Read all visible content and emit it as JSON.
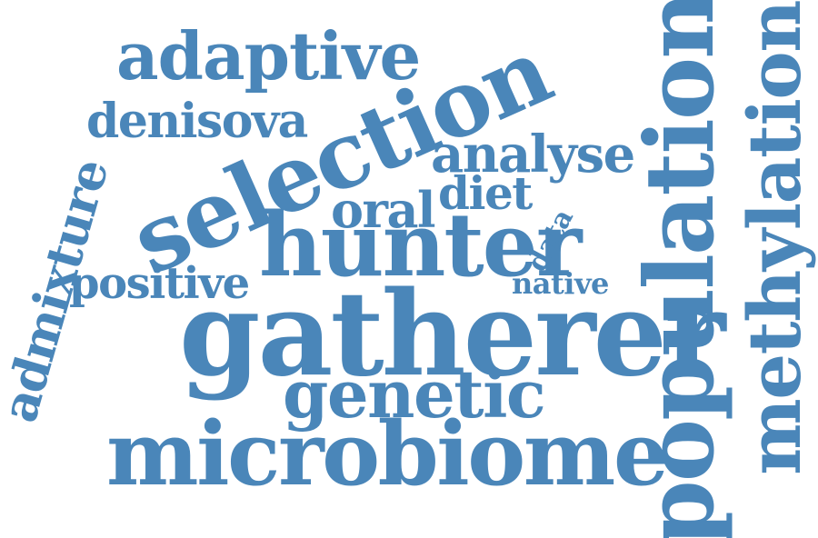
{
  "colors": {
    "word": "#4a86b9",
    "background": "#ffffff"
  },
  "words": {
    "adaptive": "adaptive",
    "denisova": "denisova",
    "selection": "selection",
    "analyse": "analyse",
    "admixture": "admixture",
    "oral": "oral",
    "diet": "diet",
    "hunter": "hunter",
    "data": "data",
    "positive": "positive",
    "native": "native",
    "gatherer": "gatherer",
    "genetic": "genetic",
    "microbiome": "microbiome",
    "population": "population",
    "methylation": "methylation"
  }
}
